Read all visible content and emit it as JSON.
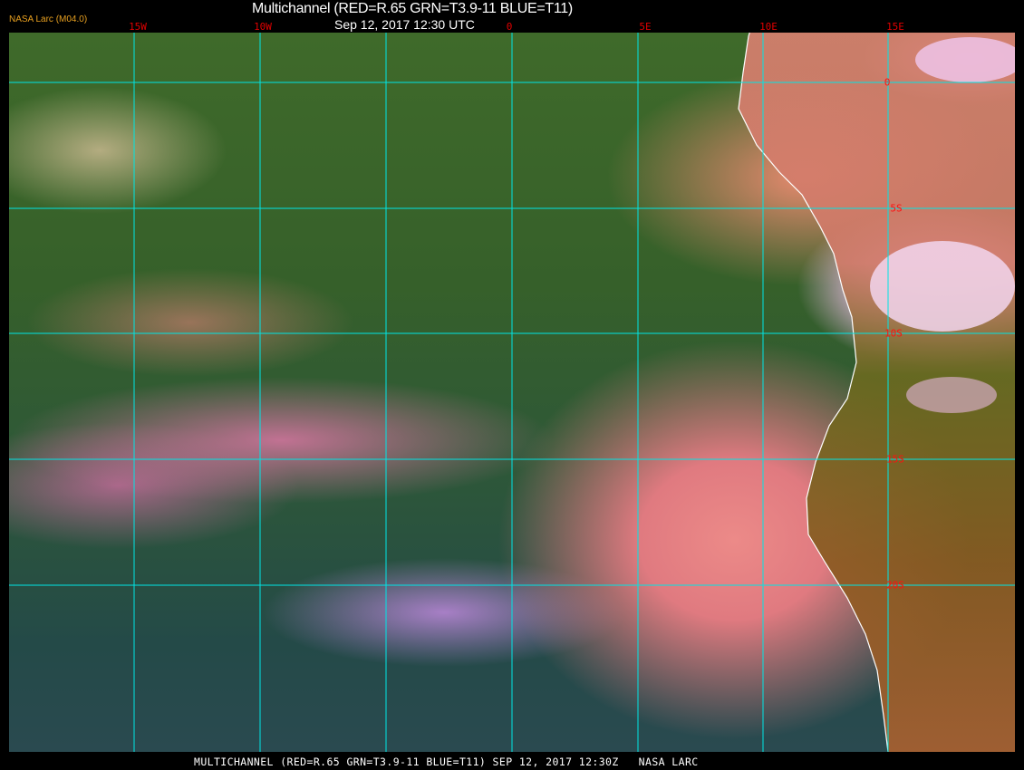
{
  "header": {
    "title": "Multichannel (RED=R.65 GRN=T3.9-11 BLUE=T11)",
    "datetime": "Sep 12, 2017 12:30 UTC",
    "credit": "NASA Larc (M04.0)"
  },
  "map": {
    "longitude_labels": [
      "15W",
      "10W",
      "0",
      "5E",
      "10E",
      "15E"
    ],
    "latitude_labels": [
      "0",
      "5S",
      "10S",
      "15S",
      "20S"
    ],
    "grid_color": "#00e5e5",
    "label_color": "#ff0000",
    "coastline_color": "#ffffff"
  },
  "footer": {
    "caption": "MULTICHANNEL (RED=R.65 GRN=T3.9-11 BLUE=T11) SEP 12, 2017 12:30Z   NASA LARC"
  }
}
